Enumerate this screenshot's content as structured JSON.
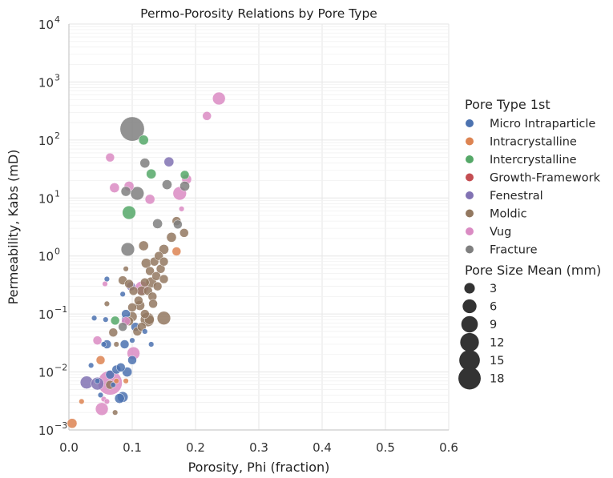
{
  "chart_data": {
    "type": "scatter",
    "title": "Permo-Porosity Relations by Pore Type",
    "xlabel": "Porosity, Phi (fraction)",
    "ylabel": "Permeability, Kabs (mD)",
    "xlim": [
      0,
      0.6
    ],
    "ylim": [
      0.001,
      10000
    ],
    "yscale": "log",
    "grid": true,
    "x_ticks": [
      "0.0",
      "0.1",
      "0.2",
      "0.3",
      "0.4",
      "0.5",
      "0.6"
    ],
    "y_ticks": [
      {
        "base": "10",
        "exp": "−3"
      },
      {
        "base": "10",
        "exp": "−2"
      },
      {
        "base": "10",
        "exp": "−1"
      },
      {
        "base": "10",
        "exp": "0"
      },
      {
        "base": "10",
        "exp": "1"
      },
      {
        "base": "10",
        "exp": "2"
      },
      {
        "base": "10",
        "exp": "3"
      },
      {
        "base": "10",
        "exp": "4"
      }
    ],
    "legend": {
      "placement": "right",
      "hue_title": "Pore Type 1st",
      "size_title": "Pore Size Mean (mm)",
      "size_values": [
        3,
        6,
        9,
        12,
        15,
        18
      ]
    },
    "series": [
      {
        "name": "Micro Intraparticle",
        "color": "#4c72b0",
        "points": [
          [
            0.035,
            0.013,
            0.3
          ],
          [
            0.04,
            0.085,
            0.3
          ],
          [
            0.045,
            0.007,
            0.3
          ],
          [
            0.05,
            0.004,
            0.3
          ],
          [
            0.055,
            0.03,
            0.3
          ],
          [
            0.058,
            0.08,
            0.3
          ],
          [
            0.06,
            0.4,
            0.3
          ],
          [
            0.06,
            0.03,
            1.5
          ],
          [
            0.065,
            0.009,
            1.5
          ],
          [
            0.07,
            0.006,
            0.3
          ],
          [
            0.075,
            0.011,
            1.5
          ],
          [
            0.08,
            0.0035,
            2
          ],
          [
            0.082,
            0.012,
            1.5
          ],
          [
            0.085,
            0.0037,
            2.5
          ],
          [
            0.085,
            0.22,
            0.3
          ],
          [
            0.088,
            0.03,
            1.5
          ],
          [
            0.09,
            0.08,
            1.5
          ],
          [
            0.09,
            0.1,
            1.5
          ],
          [
            0.092,
            0.01,
            2
          ],
          [
            0.1,
            0.016,
            1.5
          ],
          [
            0.1,
            0.035,
            0.3
          ],
          [
            0.105,
            0.06,
            1.5
          ],
          [
            0.12,
            0.05,
            0.3
          ],
          [
            0.13,
            0.03,
            0.3
          ]
        ]
      },
      {
        "name": "Intracrystalline",
        "color": "#dd8452",
        "points": [
          [
            0.005,
            0.0013,
            2
          ],
          [
            0.02,
            0.0031,
            0.3
          ],
          [
            0.05,
            0.016,
            1.5
          ],
          [
            0.075,
            0.007,
            0.3
          ],
          [
            0.09,
            0.007,
            0.3
          ],
          [
            0.17,
            1.2,
            1.5
          ]
        ]
      },
      {
        "name": "Intercrystalline",
        "color": "#55a868",
        "points": [
          [
            0.073,
            0.077,
            1.5
          ],
          [
            0.095,
            5.6,
            4.5
          ],
          [
            0.118,
            100,
            2
          ],
          [
            0.13,
            26,
            2
          ],
          [
            0.183,
            25,
            1.5
          ]
        ]
      },
      {
        "name": "Growth-Framework",
        "color": "#c44e52",
        "points": []
      },
      {
        "name": "Fenestral",
        "color": "#8172b3",
        "points": [
          [
            0.028,
            0.0066,
            4
          ],
          [
            0.045,
            0.0063,
            4
          ],
          [
            0.098,
            0.3,
            1.5
          ],
          [
            0.158,
            42,
            2
          ]
        ]
      },
      {
        "name": "Moldic",
        "color": "#937860",
        "points": [
          [
            0.06,
            0.15,
            0.3
          ],
          [
            0.065,
            0.006,
            1.5
          ],
          [
            0.07,
            0.048,
            1.5
          ],
          [
            0.073,
            0.002,
            0.3
          ],
          [
            0.075,
            0.03,
            0.3
          ],
          [
            0.085,
            0.38,
            1.5
          ],
          [
            0.09,
            0.6,
            0.3
          ],
          [
            0.095,
            0.075,
            1.5
          ],
          [
            0.095,
            0.33,
            1.5
          ],
          [
            0.1,
            0.09,
            2
          ],
          [
            0.1,
            0.13,
            1.5
          ],
          [
            0.102,
            0.25,
            1.5
          ],
          [
            0.108,
            0.05,
            1.5
          ],
          [
            0.11,
            0.17,
            1.5
          ],
          [
            0.112,
            0.14,
            2
          ],
          [
            0.115,
            0.25,
            2
          ],
          [
            0.115,
            0.06,
            1.5
          ],
          [
            0.118,
            1.5,
            2
          ],
          [
            0.12,
            0.35,
            1.5
          ],
          [
            0.12,
            0.1,
            1.5
          ],
          [
            0.122,
            0.75,
            2
          ],
          [
            0.124,
            0.08,
            5
          ],
          [
            0.125,
            0.25,
            1.5
          ],
          [
            0.127,
            0.08,
            2
          ],
          [
            0.128,
            0.55,
            1.5
          ],
          [
            0.13,
            0.35,
            2.5
          ],
          [
            0.132,
            0.2,
            1.5
          ],
          [
            0.133,
            0.15,
            1.5
          ],
          [
            0.135,
            0.8,
            1.5
          ],
          [
            0.138,
            0.45,
            1.5
          ],
          [
            0.14,
            0.3,
            1.5
          ],
          [
            0.142,
            1.0,
            1.5
          ],
          [
            0.145,
            0.6,
            1.5
          ],
          [
            0.15,
            0.8,
            1.5
          ],
          [
            0.15,
            0.4,
            1.5
          ],
          [
            0.15,
            0.085,
            4.5
          ],
          [
            0.15,
            1.3,
            2
          ],
          [
            0.162,
            2.1,
            2
          ],
          [
            0.17,
            4,
            1.5
          ],
          [
            0.182,
            2.5,
            1.5
          ]
        ]
      },
      {
        "name": "Vug",
        "color": "#da8bc3",
        "points": [
          [
            0.045,
            0.035,
            1.5
          ],
          [
            0.052,
            0.0023,
            4
          ],
          [
            0.055,
            0.0034,
            0.3
          ],
          [
            0.057,
            0.33,
            0.3
          ],
          [
            0.06,
            0.0031,
            0.3
          ],
          [
            0.065,
            0.0065,
            18
          ],
          [
            0.065,
            50,
            1.5
          ],
          [
            0.072,
            15,
            2
          ],
          [
            0.09,
            0.075,
            1.5
          ],
          [
            0.095,
            16,
            2
          ],
          [
            0.102,
            0.021,
            4
          ],
          [
            0.115,
            0.28,
            4.5
          ],
          [
            0.128,
            9.5,
            2
          ],
          [
            0.175,
            12,
            4.5
          ],
          [
            0.178,
            6.5,
            0.3
          ],
          [
            0.186,
            21,
            2
          ],
          [
            0.218,
            260,
            1.5
          ],
          [
            0.237,
            520,
            4
          ]
        ]
      },
      {
        "name": "Fracture",
        "color": "#7f7f7f",
        "points": [
          [
            0.085,
            0.06,
            1.5
          ],
          [
            0.09,
            13,
            2
          ],
          [
            0.093,
            1.3,
            4.5
          ],
          [
            0.1,
            155,
            18
          ],
          [
            0.108,
            12,
            4.5
          ],
          [
            0.12,
            40,
            2
          ],
          [
            0.14,
            3.6,
            2
          ],
          [
            0.155,
            17,
            2
          ],
          [
            0.172,
            3.5,
            1.5
          ],
          [
            0.183,
            16,
            2
          ]
        ]
      }
    ]
  }
}
